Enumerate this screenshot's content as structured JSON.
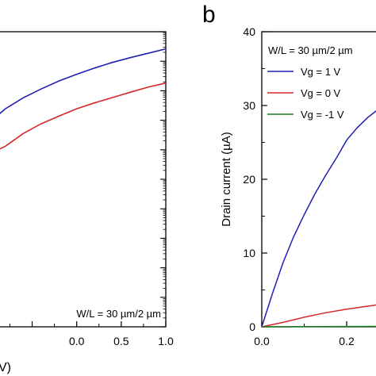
{
  "chart_data": [
    {
      "type": "line",
      "panel_label": "",
      "xlabel": "V)",
      "ylabel": "",
      "xlim": [
        -0.95,
        1.0
      ],
      "ylog_decades": [
        0,
        10
      ],
      "x_ticks": [
        -0.5,
        0.0,
        0.5,
        1.0
      ],
      "x_tick_labels": [
        "",
        "0.0",
        "0.5",
        "1.0"
      ],
      "annotation": "W/L = 30 µm/2 µm",
      "series": [
        {
          "color": "#1f1fb4",
          "x": [
            -0.95,
            -0.8,
            -0.6,
            -0.4,
            -0.2,
            0.0,
            0.2,
            0.4,
            0.6,
            0.8,
            1.0
          ],
          "y": [
            7.0,
            7.39,
            7.76,
            8.06,
            8.33,
            8.56,
            8.77,
            8.96,
            9.12,
            9.27,
            9.42
          ]
        },
        {
          "color": "#d62728",
          "x": [
            -0.95,
            -0.8,
            -0.6,
            -0.4,
            -0.2,
            0.0,
            0.2,
            0.4,
            0.6,
            0.8,
            1.0
          ],
          "y": [
            5.9,
            6.12,
            6.55,
            6.88,
            7.14,
            7.39,
            7.59,
            7.77,
            7.95,
            8.12,
            8.26
          ]
        }
      ]
    },
    {
      "type": "line",
      "panel_label": "b",
      "xlabel": "",
      "ylabel": "Drain current (µA)",
      "xlim": [
        0.0,
        0.4
      ],
      "ylim": [
        0,
        40
      ],
      "x_ticks": [
        0.0,
        0.2
      ],
      "x_tick_labels": [
        "0.0",
        "0.2"
      ],
      "y_ticks": [
        0,
        10,
        20,
        30,
        40
      ],
      "y_tick_labels": [
        "0",
        "10",
        "20",
        "30",
        "40"
      ],
      "legend": {
        "title": "W/L = 30 µm/2 µm",
        "placement": "top-left",
        "entries": [
          "Vg = 1 V",
          "Vg = 0 V",
          "Vg = -1 V"
        ]
      },
      "series": [
        {
          "name": "Vg = 1 V",
          "color": "#1f1fb4",
          "x": [
            0.0,
            0.025,
            0.05,
            0.075,
            0.1,
            0.125,
            0.15,
            0.175,
            0.2,
            0.225,
            0.25,
            0.275
          ],
          "y": [
            0.0,
            4.5,
            8.7,
            12.2,
            15.2,
            18.0,
            20.5,
            22.8,
            25.3,
            27.0,
            28.4,
            29.5
          ]
        },
        {
          "name": "Vg = 0 V",
          "color": "#d62728",
          "x": [
            0.0,
            0.05,
            0.1,
            0.15,
            0.2,
            0.25,
            0.275
          ],
          "y": [
            0.0,
            0.6,
            1.3,
            1.9,
            2.4,
            2.8,
            3.0
          ]
        },
        {
          "name": "Vg = -1 V",
          "color": "#1a7a1a",
          "x": [
            0.0,
            0.1,
            0.2,
            0.3,
            0.4
          ],
          "y": [
            0.0,
            0.02,
            0.04,
            0.05,
            0.06
          ]
        }
      ]
    }
  ]
}
